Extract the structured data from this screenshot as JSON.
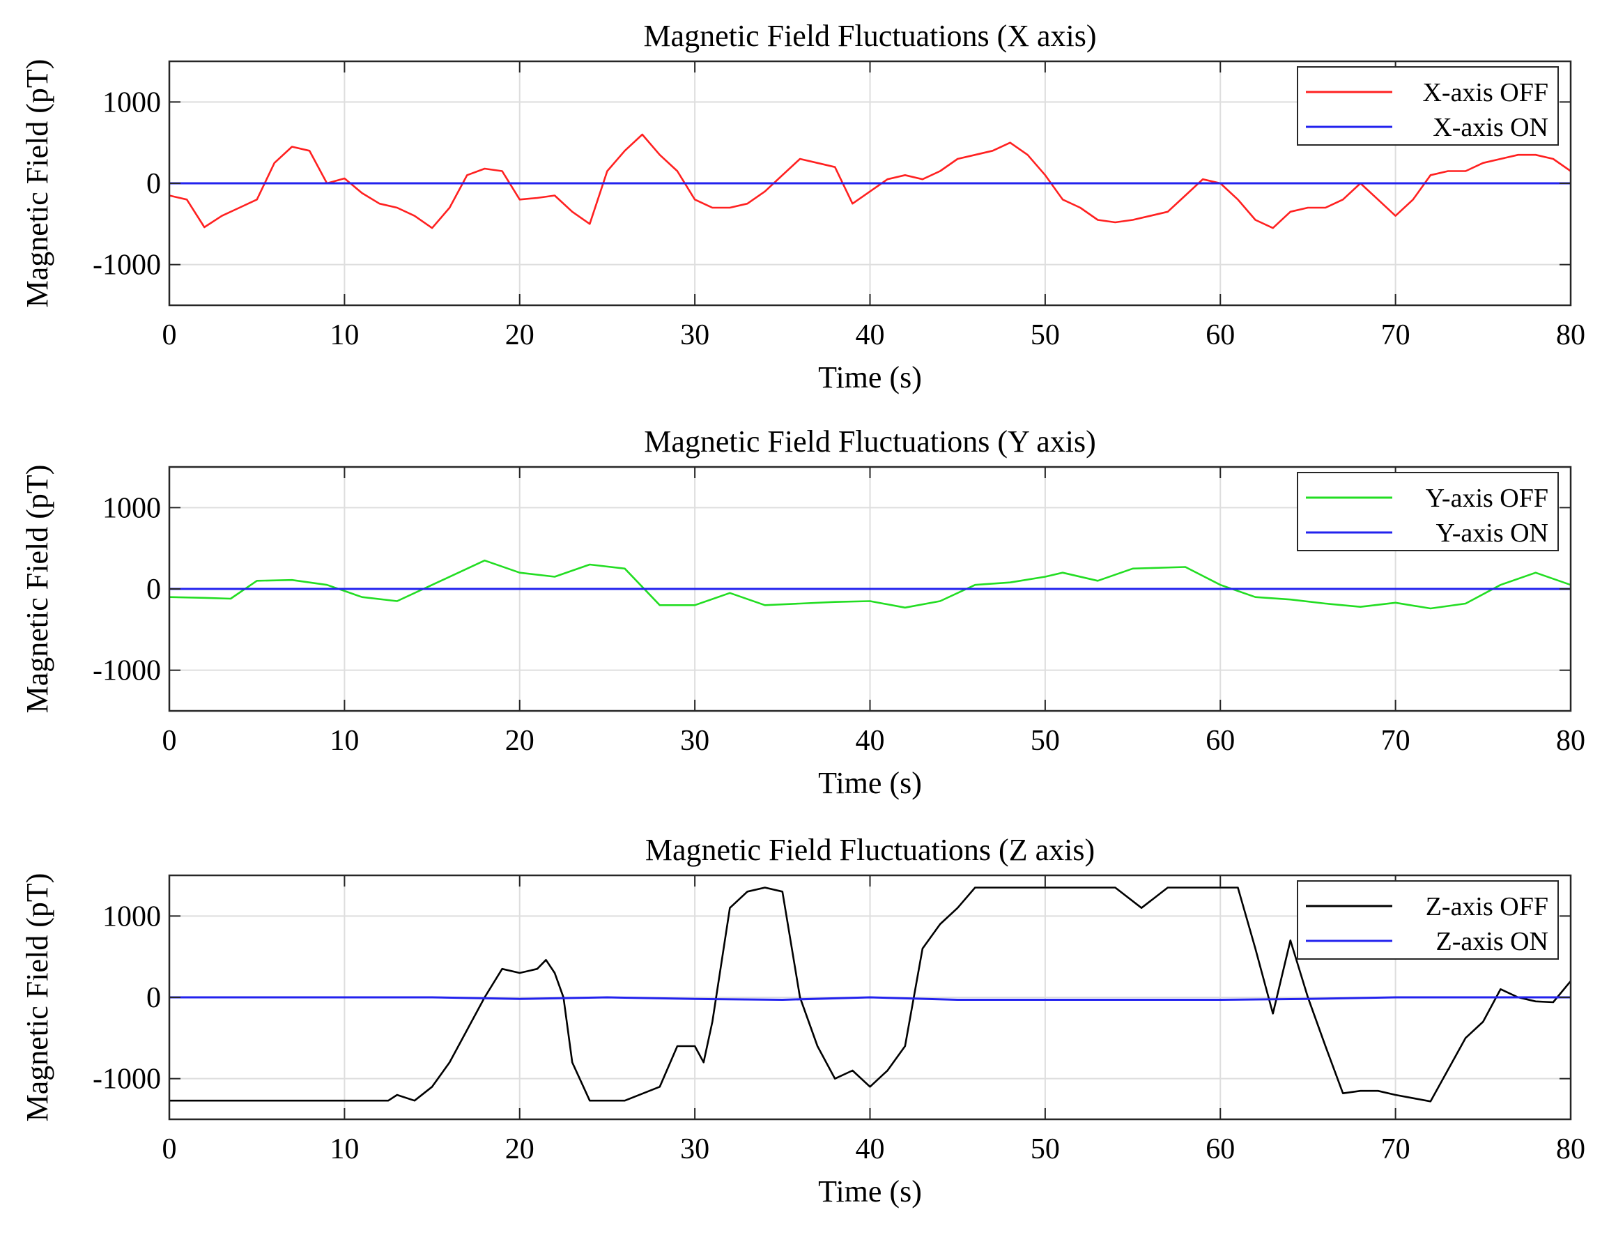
{
  "chart_data": [
    {
      "type": "line",
      "title": "Magnetic Field Fluctuations (X axis)",
      "xlabel": "Time (s)",
      "ylabel": "Magnetic Field (pT)",
      "xlim": [
        0,
        80
      ],
      "ylim": [
        -1500,
        1500
      ],
      "xticks": [
        "0",
        "10",
        "20",
        "30",
        "40",
        "50",
        "60",
        "70",
        "80"
      ],
      "yticks": [
        "1000",
        "0",
        "-1000"
      ],
      "ytick_values": [
        1000,
        0,
        -1000
      ],
      "grid": true,
      "legend_position": "top-right",
      "series": [
        {
          "name": "X-axis OFF",
          "color": "#ff2020",
          "x": [
            0,
            1,
            2,
            3,
            4,
            5,
            6,
            7,
            8,
            9,
            10,
            11,
            12,
            13,
            14,
            15,
            16,
            17,
            18,
            19,
            20,
            21,
            22,
            23,
            24,
            25,
            26,
            27,
            28,
            29,
            30,
            31,
            32,
            33,
            34,
            35,
            36,
            37,
            38,
            39,
            40,
            41,
            42,
            43,
            44,
            45,
            46,
            47,
            48,
            49,
            50,
            51,
            52,
            53,
            54,
            55,
            56,
            57,
            58,
            59,
            60,
            61,
            62,
            63,
            64,
            65,
            66,
            67,
            68,
            69,
            70,
            71,
            72,
            73,
            74,
            75,
            76,
            77,
            78,
            79,
            80
          ],
          "values": [
            -150,
            -200,
            -540,
            -400,
            -300,
            -200,
            250,
            450,
            400,
            0,
            60,
            -120,
            -250,
            -300,
            -400,
            -550,
            -300,
            100,
            180,
            150,
            -200,
            -180,
            -150,
            -350,
            -500,
            150,
            400,
            600,
            350,
            150,
            -200,
            -300,
            -300,
            -250,
            -100,
            100,
            300,
            250,
            200,
            -250,
            -100,
            50,
            100,
            50,
            150,
            300,
            350,
            400,
            500,
            350,
            100,
            -200,
            -300,
            -450,
            -480,
            -450,
            -400,
            -350,
            -150,
            50,
            0,
            -200,
            -450,
            -550,
            -350,
            -300,
            -300,
            -200,
            0,
            -200,
            -400,
            -200,
            100,
            150,
            150,
            250,
            300,
            350,
            350,
            300,
            150
          ]
        },
        {
          "name": "X-axis ON",
          "color": "#2222ee",
          "x": [
            0,
            10,
            20,
            30,
            40,
            50,
            60,
            70,
            80
          ],
          "values": [
            0,
            0,
            0,
            0,
            0,
            0,
            0,
            0,
            0
          ]
        }
      ]
    },
    {
      "type": "line",
      "title": "Magnetic Field Fluctuations (Y axis)",
      "xlabel": "Time (s)",
      "ylabel": "Magnetic Field (pT)",
      "xlim": [
        0,
        80
      ],
      "ylim": [
        -1500,
        1500
      ],
      "xticks": [
        "0",
        "10",
        "20",
        "30",
        "40",
        "50",
        "60",
        "70",
        "80"
      ],
      "yticks": [
        "1000",
        "0",
        "-1000"
      ],
      "ytick_values": [
        1000,
        0,
        -1000
      ],
      "grid": true,
      "legend_position": "top-right",
      "series": [
        {
          "name": "Y-axis OFF",
          "color": "#22dd22",
          "x": [
            0,
            2,
            3.5,
            5,
            7,
            9,
            11,
            13,
            15,
            18,
            20,
            22,
            24,
            26,
            28,
            30,
            32,
            34,
            36,
            38,
            40,
            42,
            44,
            46,
            48,
            50,
            51,
            53,
            55,
            58,
            60,
            62,
            64,
            66,
            68,
            70,
            72,
            74,
            76,
            78,
            80
          ],
          "values": [
            -100,
            -110,
            -120,
            100,
            110,
            50,
            -100,
            -150,
            50,
            350,
            200,
            150,
            300,
            250,
            -200,
            -200,
            -50,
            -200,
            -180,
            -160,
            -150,
            -230,
            -150,
            50,
            80,
            150,
            200,
            100,
            250,
            270,
            50,
            -100,
            -130,
            -180,
            -220,
            -170,
            -240,
            -180,
            50,
            200,
            50
          ]
        },
        {
          "name": "Y-axis ON",
          "color": "#2222ee",
          "x": [
            0,
            10,
            20,
            30,
            40,
            50,
            60,
            70,
            80
          ],
          "values": [
            0,
            0,
            0,
            0,
            0,
            0,
            0,
            0,
            0
          ]
        }
      ]
    },
    {
      "type": "line",
      "title": "Magnetic Field Fluctuations (Z axis)",
      "xlabel": "Time (s)",
      "ylabel": "Magnetic Field (pT)",
      "xlim": [
        0,
        80
      ],
      "ylim": [
        -1500,
        1500
      ],
      "xticks": [
        "0",
        "10",
        "20",
        "30",
        "40",
        "50",
        "60",
        "70",
        "80"
      ],
      "yticks": [
        "1000",
        "0",
        "-1000"
      ],
      "ytick_values": [
        1000,
        0,
        -1000
      ],
      "grid": true,
      "legend_position": "top-right",
      "series": [
        {
          "name": "Z-axis OFF",
          "color": "#000000",
          "x": [
            0,
            10,
            12.5,
            13,
            14,
            15,
            16,
            17,
            18,
            19,
            20,
            21,
            21.5,
            22,
            22.5,
            23,
            24,
            26,
            28,
            29,
            30,
            30.5,
            31,
            32,
            33,
            34,
            35,
            36,
            37,
            38,
            39,
            40,
            41,
            42,
            43,
            44,
            45,
            46,
            50,
            54,
            55.5,
            57,
            60,
            61,
            62,
            63,
            64,
            65,
            66,
            67,
            68,
            69,
            70,
            72,
            74,
            75,
            76,
            77,
            78,
            79,
            80
          ],
          "values": [
            -1270,
            -1270,
            -1270,
            -1200,
            -1270,
            -1100,
            -800,
            -400,
            0,
            350,
            300,
            350,
            460,
            300,
            0,
            -800,
            -1270,
            -1270,
            -1100,
            -600,
            -600,
            -800,
            -300,
            1100,
            1300,
            1350,
            1300,
            0,
            -600,
            -1000,
            -900,
            -1100,
            -900,
            -600,
            600,
            900,
            1100,
            1350,
            1350,
            1350,
            1100,
            1350,
            1350,
            1350,
            600,
            -200,
            700,
            0,
            -600,
            -1180,
            -1150,
            -1150,
            -1200,
            -1280,
            -500,
            -300,
            100,
            0,
            -50,
            -60,
            200
          ]
        },
        {
          "name": "Z-axis ON",
          "color": "#2222ee",
          "x": [
            0,
            10,
            15,
            20,
            25,
            30,
            35,
            40,
            45,
            50,
            55,
            60,
            65,
            70,
            75,
            80
          ],
          "values": [
            0,
            0,
            0,
            -20,
            0,
            -20,
            -30,
            0,
            -30,
            -30,
            -30,
            -30,
            -20,
            0,
            0,
            0
          ]
        }
      ]
    }
  ]
}
